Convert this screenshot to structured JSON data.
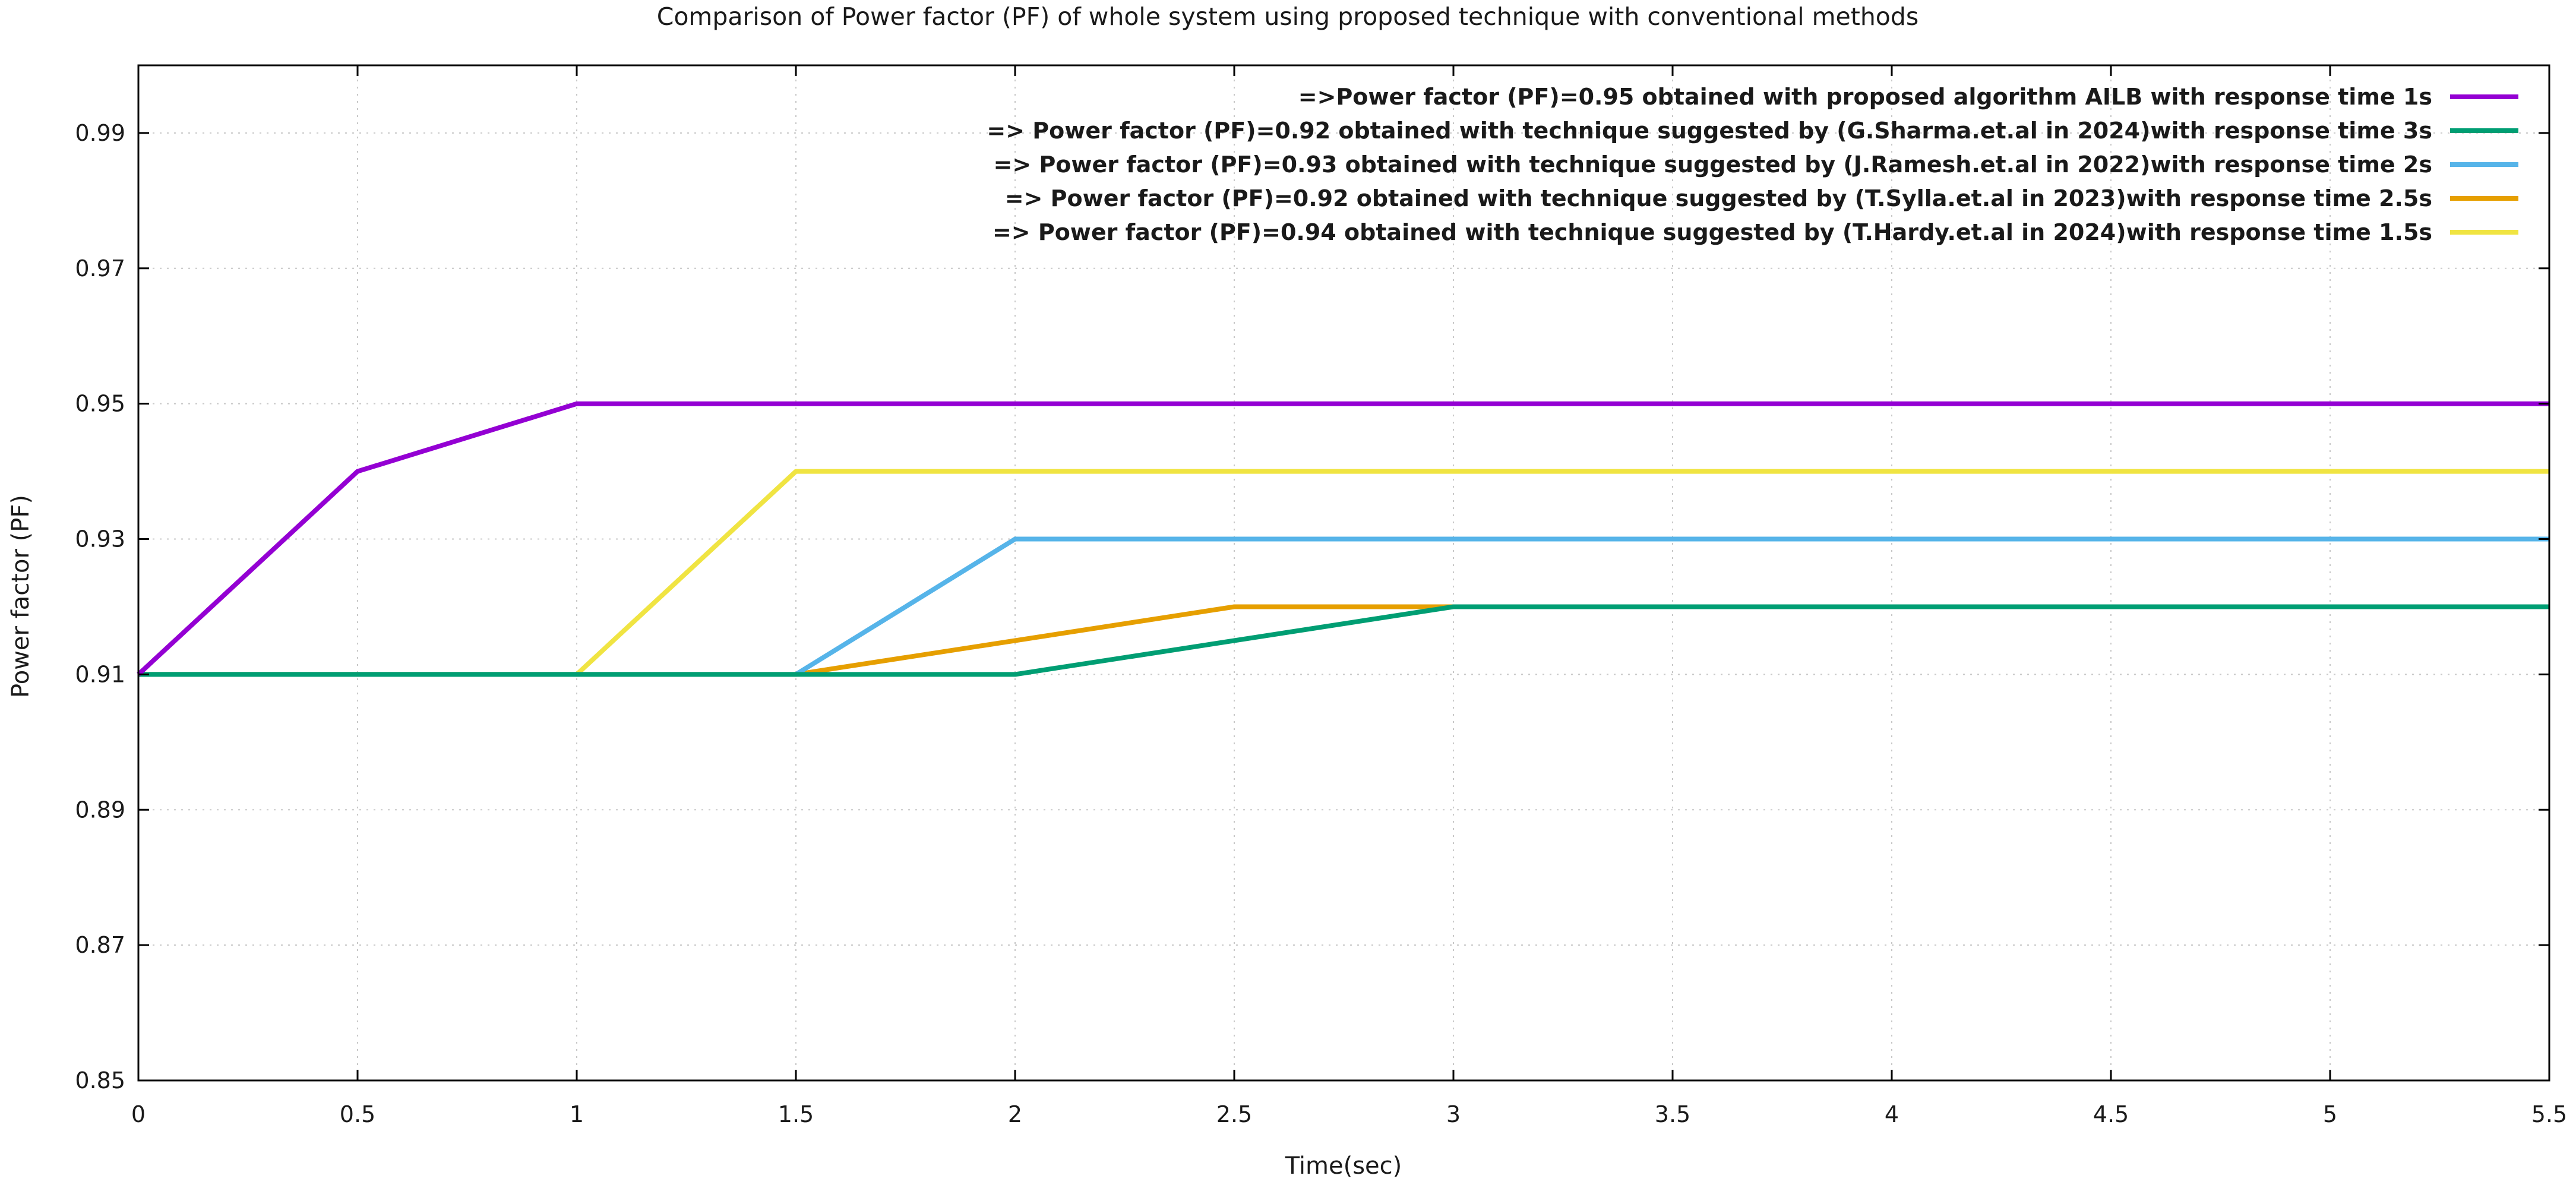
{
  "chart_data": {
    "type": "line",
    "title": "Comparison of Power factor (PF) of whole system using proposed technique with conventional methods",
    "xlabel": "Time(sec)",
    "ylabel": "Power factor (PF)",
    "xlim": [
      0,
      5.5
    ],
    "ylim": [
      0.85,
      1.0
    ],
    "xticks": [
      0,
      0.5,
      1,
      1.5,
      2,
      2.5,
      3,
      3.5,
      4,
      4.5,
      5,
      5.5
    ],
    "xtick_labels": [
      "0",
      "0.5",
      "1",
      "1.5",
      "2",
      "2.5",
      "3",
      "3.5",
      "4",
      "4.5",
      "5",
      "5.5"
    ],
    "yticks": [
      0.85,
      0.87,
      0.89,
      0.91,
      0.93,
      0.95,
      0.97,
      0.99
    ],
    "ytick_labels": [
      "0.85",
      "0.87",
      "0.89",
      "0.91",
      "0.93",
      "0.95",
      "0.97",
      "0.99"
    ],
    "grid": true,
    "legend_position": "top-right",
    "series": [
      {
        "name": "=>Power factor (PF)=0.95 obtained with proposed algorithm AILB with response time 1s",
        "color": "#9400d3",
        "x": [
          0,
          0.5,
          1,
          5.5
        ],
        "y": [
          0.91,
          0.94,
          0.95,
          0.95
        ]
      },
      {
        "name": "=> Power factor (PF)=0.92 obtained with technique suggested by (G.Sharma.et.al in 2024)with response time 3s",
        "color": "#009e73",
        "x": [
          0,
          2,
          3,
          5.5
        ],
        "y": [
          0.91,
          0.91,
          0.92,
          0.92
        ]
      },
      {
        "name": "=> Power factor (PF)=0.93 obtained with technique suggested by (J.Ramesh.et.al in 2022)with response time 2s",
        "color": "#56b4e9",
        "x": [
          0,
          1.5,
          2,
          5.5
        ],
        "y": [
          0.91,
          0.91,
          0.93,
          0.93
        ]
      },
      {
        "name": "=> Power factor (PF)=0.92 obtained with technique suggested by (T.Sylla.et.al in 2023)with response time 2.5s",
        "color": "#e69f00",
        "x": [
          0,
          1.5,
          2.5,
          5.5
        ],
        "y": [
          0.91,
          0.91,
          0.92,
          0.92
        ]
      },
      {
        "name": "=> Power factor (PF)=0.94 obtained with technique suggested by (T.Hardy.et.al in 2024)with response time 1.5s",
        "color": "#f0e442",
        "x": [
          0,
          1,
          1.5,
          5.5
        ],
        "y": [
          0.91,
          0.91,
          0.94,
          0.94
        ]
      }
    ]
  }
}
